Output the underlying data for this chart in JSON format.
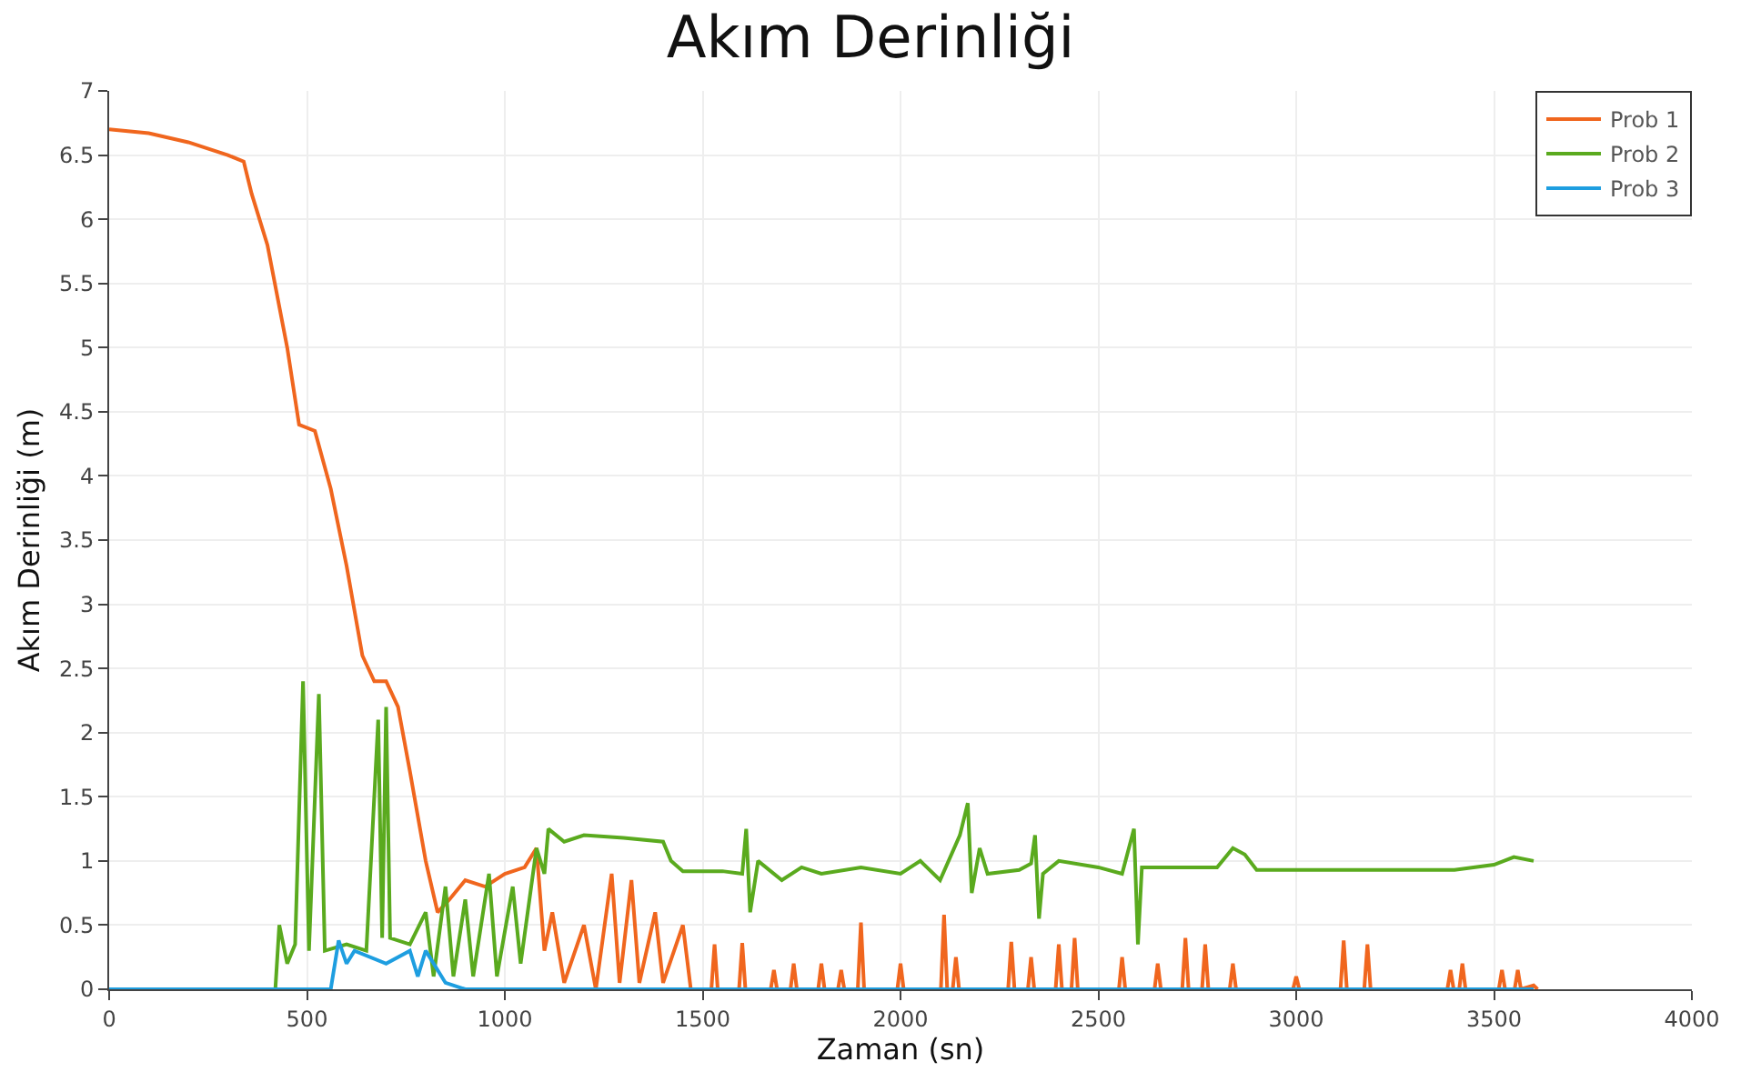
{
  "chart_data": {
    "type": "line",
    "title": "Akım Derinliği",
    "xlabel": "Zaman (sn)",
    "ylabel": "Akım Derinliği (m)",
    "xlim": [
      0,
      4000
    ],
    "xticks": [
      0,
      500,
      1000,
      1500,
      2000,
      2500,
      3000,
      3500,
      4000
    ],
    "ylim": [
      0,
      7
    ],
    "yticks": [
      0,
      0.5,
      1,
      1.5,
      2,
      2.5,
      3,
      3.5,
      4,
      4.5,
      5,
      5.5,
      6,
      6.5,
      7
    ],
    "grid": true,
    "legend": "top right",
    "marker": "none",
    "line_style": "solid",
    "series": [
      {
        "name": "Prob 1",
        "color": "#f0661e",
        "x": [
          0,
          100,
          200,
          300,
          340,
          360,
          400,
          450,
          480,
          520,
          560,
          600,
          640,
          670,
          700,
          730,
          760,
          800,
          830,
          860,
          900,
          950,
          1000,
          1050,
          1080,
          1100,
          1120,
          1150,
          1200,
          1230,
          1270,
          1290,
          1320,
          1340,
          1380,
          1400,
          1450,
          1470,
          1522,
          1530,
          1538,
          1592,
          1600,
          1608,
          1672,
          1680,
          1688,
          1722,
          1730,
          1738,
          1792,
          1800,
          1808,
          1842,
          1850,
          1858,
          1892,
          1900,
          1908,
          1992,
          2000,
          2008,
          2102,
          2110,
          2118,
          2132,
          2140,
          2148,
          2272,
          2280,
          2288,
          2322,
          2330,
          2338,
          2392,
          2400,
          2408,
          2432,
          2440,
          2448,
          2552,
          2560,
          2568,
          2642,
          2650,
          2658,
          2712,
          2720,
          2728,
          2762,
          2770,
          2778,
          2832,
          2840,
          2848,
          2992,
          3000,
          3008,
          3112,
          3120,
          3128,
          3172,
          3180,
          3188,
          3382,
          3390,
          3398,
          3412,
          3420,
          3428,
          3512,
          3520,
          3528,
          3552,
          3560,
          3568,
          3600,
          3610
        ],
        "values": [
          6.7,
          6.67,
          6.6,
          6.5,
          6.45,
          6.2,
          5.8,
          5.0,
          4.4,
          4.35,
          3.9,
          3.3,
          2.6,
          2.4,
          2.4,
          2.2,
          1.7,
          1.0,
          0.6,
          0.7,
          0.85,
          0.8,
          0.9,
          0.95,
          1.1,
          0.3,
          0.6,
          0.05,
          0.5,
          0.0,
          0.9,
          0.05,
          0.85,
          0.05,
          0.6,
          0.05,
          0.5,
          0.0,
          0,
          0.35,
          0,
          0,
          0.36,
          0,
          0,
          0.15,
          0,
          0,
          0.2,
          0,
          0,
          0.2,
          0,
          0,
          0.15,
          0,
          0,
          0.52,
          0,
          0,
          0.2,
          0,
          0,
          0.58,
          0,
          0,
          0.25,
          0,
          0,
          0.37,
          0,
          0,
          0.25,
          0,
          0,
          0.35,
          0,
          0,
          0.4,
          0,
          0,
          0.25,
          0,
          0,
          0.2,
          0,
          0,
          0.4,
          0,
          0,
          0.35,
          0,
          0,
          0.2,
          0,
          0,
          0.1,
          0,
          0,
          0.38,
          0,
          0,
          0.35,
          0,
          0,
          0.15,
          0,
          0,
          0.2,
          0,
          0,
          0.15,
          0,
          0,
          0.15,
          0,
          0.03,
          0
        ]
      },
      {
        "name": "Prob 2",
        "color": "#5aaa1e",
        "x": [
          0,
          420,
          430,
          450,
          470,
          490,
          505,
          530,
          545,
          600,
          650,
          680,
          690,
          700,
          710,
          760,
          800,
          820,
          850,
          870,
          900,
          920,
          960,
          980,
          1020,
          1040,
          1080,
          1100,
          1110,
          1150,
          1200,
          1300,
          1400,
          1420,
          1450,
          1550,
          1600,
          1610,
          1620,
          1640,
          1700,
          1750,
          1800,
          1900,
          2000,
          2050,
          2100,
          2150,
          2170,
          2180,
          2200,
          2220,
          2300,
          2330,
          2340,
          2350,
          2360,
          2400,
          2500,
          2560,
          2590,
          2600,
          2610,
          2800,
          2840,
          2870,
          2900,
          3400,
          3500,
          3550,
          3600
        ],
        "values": [
          0,
          0,
          0.5,
          0.2,
          0.35,
          2.4,
          0.3,
          2.3,
          0.3,
          0.35,
          0.3,
          2.1,
          0.4,
          2.2,
          0.4,
          0.35,
          0.6,
          0.1,
          0.8,
          0.1,
          0.7,
          0.1,
          0.9,
          0.1,
          0.8,
          0.2,
          1.1,
          0.9,
          1.25,
          1.15,
          1.2,
          1.18,
          1.15,
          1.0,
          0.92,
          0.92,
          0.9,
          1.25,
          0.6,
          1.0,
          0.85,
          0.95,
          0.9,
          0.95,
          0.9,
          1.0,
          0.85,
          1.2,
          1.45,
          0.75,
          1.1,
          0.9,
          0.93,
          0.98,
          1.2,
          0.55,
          0.9,
          1.0,
          0.95,
          0.9,
          1.25,
          0.35,
          0.95,
          0.95,
          1.1,
          1.05,
          0.93,
          0.93,
          0.97,
          1.03,
          1.0
        ]
      },
      {
        "name": "Prob 3",
        "color": "#1e9ee0",
        "x": [
          0,
          560,
          580,
          600,
          620,
          700,
          760,
          780,
          800,
          850,
          900,
          1000,
          3600
        ],
        "values": [
          0,
          0,
          0.38,
          0.2,
          0.3,
          0.2,
          0.3,
          0.1,
          0.3,
          0.05,
          0.0,
          0.0,
          0.0
        ]
      }
    ]
  }
}
